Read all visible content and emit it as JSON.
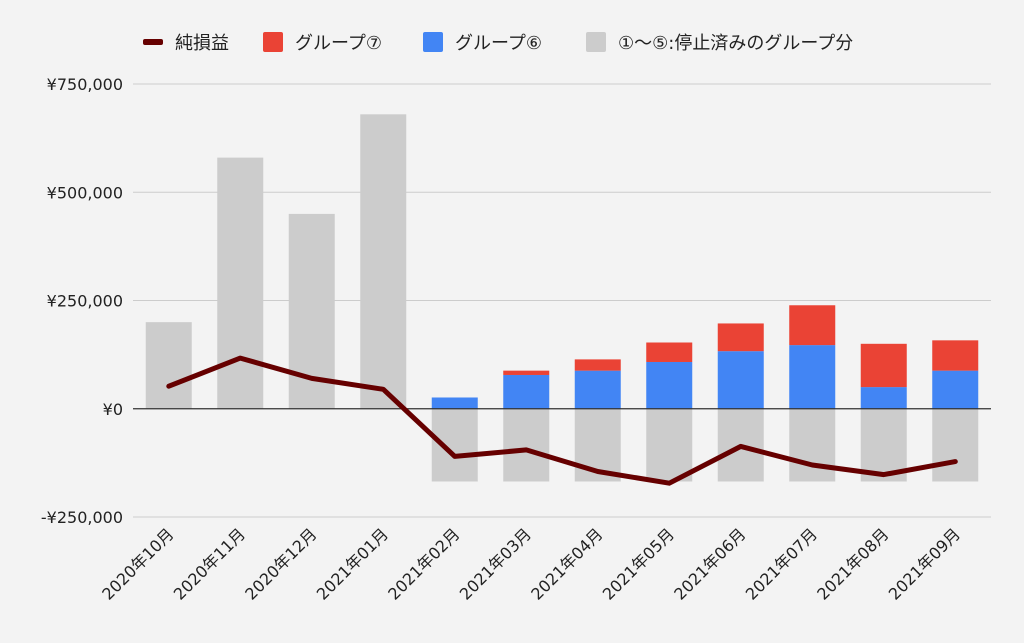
{
  "chart_data": {
    "type": "bar",
    "title": "",
    "xlabel": "",
    "ylabel": "",
    "ylim": [
      -250000,
      750000
    ],
    "yticks": [
      -250000,
      0,
      250000,
      500000,
      750000
    ],
    "ytick_labels": [
      "-¥250,000",
      "¥0",
      "¥250,000",
      "¥500,000",
      "¥750,000"
    ],
    "grid": true,
    "legend_position": "top",
    "categories": [
      "2020年10月",
      "2020年11月",
      "2020年12月",
      "2021年01月",
      "2021年02月",
      "2021年03月",
      "2021年04月",
      "2021年05月",
      "2021年06月",
      "2021年07月",
      "2021年08月",
      "2021年09月"
    ],
    "stacked": true,
    "series": [
      {
        "key": "stopped",
        "name": "①〜⑤:停止済みのグループ分",
        "type": "bar",
        "color": "#cccccc",
        "values": [
          200000,
          580000,
          450000,
          680000,
          -168000,
          -168000,
          -168000,
          -168000,
          -168000,
          -168000,
          -168000,
          -168000
        ]
      },
      {
        "key": "group6",
        "name": "グループ⑥",
        "type": "bar",
        "color": "#4285f4",
        "values": [
          0,
          0,
          0,
          0,
          26000,
          78000,
          88000,
          108000,
          133000,
          147000,
          50000,
          88000
        ]
      },
      {
        "key": "group7",
        "name": "グループ⑦",
        "type": "bar",
        "color": "#ea4335",
        "values": [
          0,
          0,
          0,
          0,
          0,
          10000,
          26000,
          45000,
          64000,
          92000,
          100000,
          70000
        ]
      },
      {
        "key": "net",
        "name": "純損益",
        "type": "line",
        "color": "#660000",
        "values": [
          52000,
          117000,
          70000,
          45000,
          -110000,
          -95000,
          -145000,
          -172000,
          -87000,
          -130000,
          -152000,
          -122000
        ]
      }
    ]
  },
  "legend_order": [
    "net",
    "group7",
    "group6",
    "stopped"
  ]
}
